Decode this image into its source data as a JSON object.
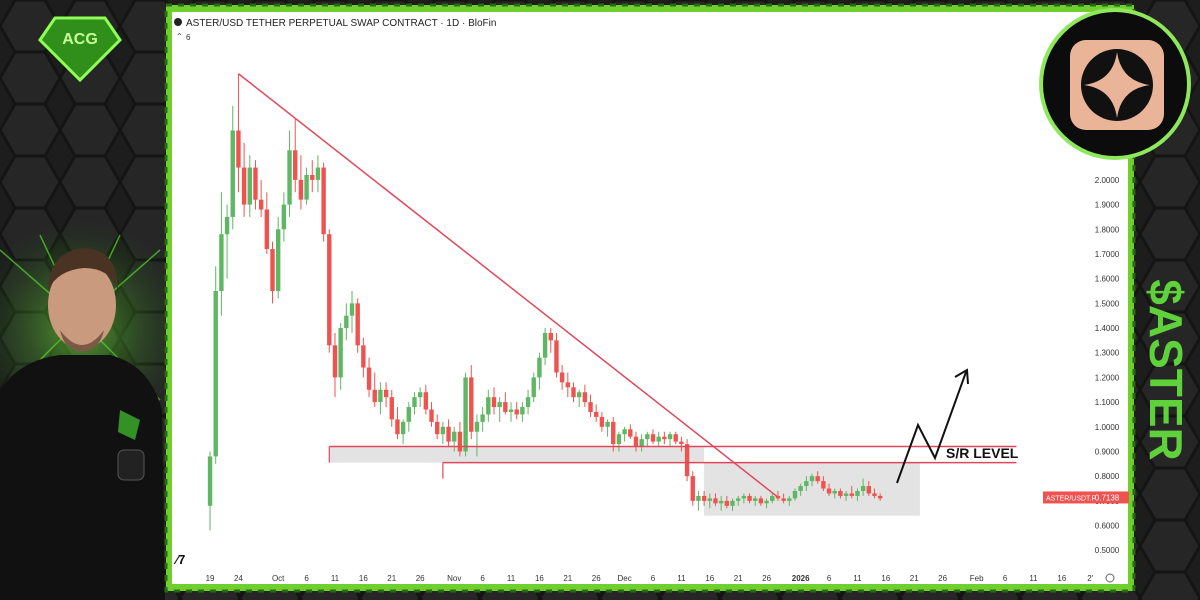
{
  "brand": "ACG",
  "ticker_label": "$ASTER",
  "chart_data": {
    "type": "candlestick",
    "title": "ASTER/USD TETHER PERPETUAL SWAP CONTRACT · 1D · BloFin",
    "indicator_count": "6",
    "up_color": "#5fb764",
    "down_color": "#ef5350",
    "grid": false,
    "xlim": [
      -3,
      159
    ],
    "ylim": [
      0.42,
      2.68
    ],
    "xticks": [
      {
        "value": 0,
        "label": "19"
      },
      {
        "value": 5,
        "label": "24"
      },
      {
        "value": 12,
        "label": "Oct"
      },
      {
        "value": 17,
        "label": "6"
      },
      {
        "value": 22,
        "label": "11"
      },
      {
        "value": 27,
        "label": "16"
      },
      {
        "value": 32,
        "label": "21"
      },
      {
        "value": 37,
        "label": "26"
      },
      {
        "value": 43,
        "label": "Nov"
      },
      {
        "value": 48,
        "label": "6"
      },
      {
        "value": 53,
        "label": "11"
      },
      {
        "value": 58,
        "label": "16"
      },
      {
        "value": 63,
        "label": "21"
      },
      {
        "value": 68,
        "label": "26"
      },
      {
        "value": 73,
        "label": "Dec"
      },
      {
        "value": 78,
        "label": "6"
      },
      {
        "value": 83,
        "label": "11"
      },
      {
        "value": 88,
        "label": "16"
      },
      {
        "value": 93,
        "label": "21"
      },
      {
        "value": 98,
        "label": "26"
      },
      {
        "value": 104,
        "label": "2026"
      },
      {
        "value": 109,
        "label": "6"
      },
      {
        "value": 114,
        "label": "11"
      },
      {
        "value": 119,
        "label": "16"
      },
      {
        "value": 124,
        "label": "21"
      },
      {
        "value": 129,
        "label": "26"
      },
      {
        "value": 135,
        "label": "Feb"
      },
      {
        "value": 140,
        "label": "6"
      },
      {
        "value": 145,
        "label": "11"
      },
      {
        "value": 150,
        "label": "16"
      },
      {
        "value": 155,
        "label": "2'"
      }
    ],
    "yticks": [
      {
        "value": 2.0,
        "label": "2.0000"
      },
      {
        "value": 1.9,
        "label": "1.9000"
      },
      {
        "value": 1.8,
        "label": "1.8000"
      },
      {
        "value": 1.7,
        "label": "1.7000"
      },
      {
        "value": 1.6,
        "label": "1.6000"
      },
      {
        "value": 1.5,
        "label": "1.5000"
      },
      {
        "value": 1.4,
        "label": "1.4000"
      },
      {
        "value": 1.3,
        "label": "1.3000"
      },
      {
        "value": 1.2,
        "label": "1.2000"
      },
      {
        "value": 1.1,
        "label": "1.1000"
      },
      {
        "value": 1.0,
        "label": "1.0000"
      },
      {
        "value": 0.9,
        "label": "0.9000"
      },
      {
        "value": 0.8,
        "label": "0.8000"
      },
      {
        "value": 0.7,
        "label": "0.7000"
      },
      {
        "value": 0.6,
        "label": "0.6000"
      },
      {
        "value": 0.5,
        "label": "0.5000"
      }
    ],
    "ohlc": [
      [
        0.68,
        0.9,
        0.58,
        0.88
      ],
      [
        0.88,
        1.65,
        0.85,
        1.55
      ],
      [
        1.55,
        1.95,
        1.45,
        1.78
      ],
      [
        1.78,
        1.9,
        1.6,
        1.85
      ],
      [
        1.85,
        2.3,
        1.8,
        2.2
      ],
      [
        2.2,
        2.43,
        1.95,
        2.05
      ],
      [
        2.05,
        2.15,
        1.85,
        1.9
      ],
      [
        1.9,
        2.1,
        1.85,
        2.05
      ],
      [
        2.05,
        2.08,
        1.88,
        1.92
      ],
      [
        1.92,
        2.0,
        1.85,
        1.88
      ],
      [
        1.88,
        1.95,
        1.7,
        1.72
      ],
      [
        1.72,
        1.75,
        1.5,
        1.55
      ],
      [
        1.55,
        1.85,
        1.52,
        1.8
      ],
      [
        1.8,
        1.95,
        1.75,
        1.9
      ],
      [
        1.9,
        2.2,
        1.85,
        2.12
      ],
      [
        2.12,
        2.25,
        1.95,
        2.0
      ],
      [
        2.0,
        2.1,
        1.88,
        1.92
      ],
      [
        1.92,
        2.05,
        1.9,
        2.02
      ],
      [
        2.02,
        2.08,
        1.95,
        2.0
      ],
      [
        2.0,
        2.1,
        1.95,
        2.05
      ],
      [
        2.05,
        2.07,
        1.75,
        1.78
      ],
      [
        1.78,
        1.8,
        1.3,
        1.33
      ],
      [
        1.33,
        1.38,
        1.12,
        1.2
      ],
      [
        1.2,
        1.42,
        1.15,
        1.4
      ],
      [
        1.4,
        1.5,
        1.35,
        1.45
      ],
      [
        1.45,
        1.55,
        1.38,
        1.5
      ],
      [
        1.5,
        1.52,
        1.3,
        1.33
      ],
      [
        1.33,
        1.36,
        1.2,
        1.24
      ],
      [
        1.24,
        1.28,
        1.12,
        1.15
      ],
      [
        1.15,
        1.22,
        1.08,
        1.1
      ],
      [
        1.1,
        1.18,
        1.05,
        1.15
      ],
      [
        1.15,
        1.18,
        1.08,
        1.12
      ],
      [
        1.12,
        1.15,
        1.0,
        1.03
      ],
      [
        1.03,
        1.08,
        0.95,
        0.97
      ],
      [
        0.97,
        1.03,
        0.93,
        1.02
      ],
      [
        1.02,
        1.1,
        0.98,
        1.08
      ],
      [
        1.08,
        1.14,
        1.05,
        1.12
      ],
      [
        1.12,
        1.16,
        1.08,
        1.14
      ],
      [
        1.14,
        1.17,
        1.05,
        1.07
      ],
      [
        1.07,
        1.1,
        1.0,
        1.02
      ],
      [
        1.02,
        1.05,
        0.95,
        0.97
      ],
      [
        0.97,
        1.02,
        0.93,
        1.0
      ],
      [
        1.0,
        1.03,
        0.92,
        0.94
      ],
      [
        0.94,
        1.0,
        0.9,
        0.98
      ],
      [
        0.98,
        1.02,
        0.88,
        0.9
      ],
      [
        0.9,
        1.22,
        0.88,
        1.2
      ],
      [
        1.2,
        1.25,
        0.95,
        0.98
      ],
      [
        0.98,
        1.05,
        0.88,
        1.02
      ],
      [
        1.02,
        1.08,
        0.98,
        1.05
      ],
      [
        1.05,
        1.15,
        1.02,
        1.12
      ],
      [
        1.12,
        1.16,
        1.05,
        1.08
      ],
      [
        1.08,
        1.12,
        1.02,
        1.1
      ],
      [
        1.1,
        1.14,
        1.05,
        1.06
      ],
      [
        1.06,
        1.1,
        1.02,
        1.07
      ],
      [
        1.07,
        1.1,
        1.03,
        1.05
      ],
      [
        1.05,
        1.1,
        1.02,
        1.08
      ],
      [
        1.08,
        1.15,
        1.05,
        1.12
      ],
      [
        1.12,
        1.22,
        1.1,
        1.2
      ],
      [
        1.2,
        1.3,
        1.15,
        1.28
      ],
      [
        1.28,
        1.4,
        1.25,
        1.38
      ],
      [
        1.38,
        1.4,
        1.3,
        1.35
      ],
      [
        1.35,
        1.38,
        1.2,
        1.22
      ],
      [
        1.22,
        1.25,
        1.15,
        1.18
      ],
      [
        1.18,
        1.22,
        1.12,
        1.16
      ],
      [
        1.16,
        1.18,
        1.1,
        1.12
      ],
      [
        1.12,
        1.15,
        1.08,
        1.14
      ],
      [
        1.14,
        1.17,
        1.08,
        1.1
      ],
      [
        1.1,
        1.13,
        1.04,
        1.06
      ],
      [
        1.06,
        1.09,
        1.02,
        1.04
      ],
      [
        1.04,
        1.06,
        0.98,
        1.0
      ],
      [
        1.0,
        1.03,
        0.96,
        1.02
      ],
      [
        1.02,
        1.04,
        0.9,
        0.93
      ],
      [
        0.93,
        0.98,
        0.9,
        0.97
      ],
      [
        0.97,
        1.0,
        0.94,
        0.99
      ],
      [
        0.99,
        1.01,
        0.95,
        0.96
      ],
      [
        0.96,
        0.98,
        0.9,
        0.92
      ],
      [
        0.92,
        0.97,
        0.9,
        0.95
      ],
      [
        0.95,
        0.98,
        0.92,
        0.97
      ],
      [
        0.97,
        0.99,
        0.93,
        0.94
      ],
      [
        0.94,
        0.98,
        0.92,
        0.96
      ],
      [
        0.96,
        0.98,
        0.93,
        0.95
      ],
      [
        0.95,
        0.98,
        0.92,
        0.97
      ],
      [
        0.97,
        0.98,
        0.93,
        0.94
      ],
      [
        0.94,
        0.96,
        0.9,
        0.93
      ],
      [
        0.93,
        0.95,
        0.78,
        0.8
      ],
      [
        0.8,
        0.82,
        0.68,
        0.7
      ],
      [
        0.7,
        0.74,
        0.66,
        0.72
      ],
      [
        0.72,
        0.74,
        0.68,
        0.7
      ],
      [
        0.7,
        0.73,
        0.67,
        0.71
      ],
      [
        0.71,
        0.73,
        0.68,
        0.69
      ],
      [
        0.69,
        0.72,
        0.66,
        0.7
      ],
      [
        0.7,
        0.72,
        0.67,
        0.68
      ],
      [
        0.68,
        0.71,
        0.66,
        0.7
      ],
      [
        0.7,
        0.72,
        0.68,
        0.71
      ],
      [
        0.71,
        0.73,
        0.69,
        0.72
      ],
      [
        0.72,
        0.73,
        0.69,
        0.7
      ],
      [
        0.7,
        0.72,
        0.68,
        0.71
      ],
      [
        0.71,
        0.72,
        0.68,
        0.69
      ],
      [
        0.69,
        0.71,
        0.67,
        0.7
      ],
      [
        0.7,
        0.73,
        0.69,
        0.72
      ],
      [
        0.72,
        0.74,
        0.7,
        0.71
      ],
      [
        0.71,
        0.73,
        0.69,
        0.7
      ],
      [
        0.7,
        0.72,
        0.68,
        0.71
      ],
      [
        0.71,
        0.75,
        0.7,
        0.74
      ],
      [
        0.74,
        0.77,
        0.72,
        0.76
      ],
      [
        0.76,
        0.8,
        0.74,
        0.78
      ],
      [
        0.78,
        0.81,
        0.76,
        0.8
      ],
      [
        0.8,
        0.82,
        0.77,
        0.78
      ],
      [
        0.78,
        0.8,
        0.74,
        0.75
      ],
      [
        0.75,
        0.77,
        0.72,
        0.73
      ],
      [
        0.73,
        0.75,
        0.71,
        0.74
      ],
      [
        0.74,
        0.75,
        0.71,
        0.72
      ],
      [
        0.72,
        0.74,
        0.7,
        0.73
      ],
      [
        0.73,
        0.76,
        0.71,
        0.72
      ],
      [
        0.72,
        0.75,
        0.7,
        0.74
      ],
      [
        0.74,
        0.79,
        0.72,
        0.76
      ],
      [
        0.76,
        0.78,
        0.72,
        0.73
      ],
      [
        0.73,
        0.75,
        0.71,
        0.72
      ],
      [
        0.72,
        0.73,
        0.7,
        0.71
      ]
    ],
    "trendline": {
      "x": [
        5,
        100
      ],
      "y": [
        2.43,
        0.715
      ],
      "color": "#e0485a"
    },
    "levels": [
      {
        "value": 0.92,
        "x": [
          21,
          142
        ]
      },
      {
        "value": 0.855,
        "x": [
          41,
          142
        ]
      }
    ],
    "zones": [
      {
        "x": [
          21,
          87
        ],
        "y": [
          0.855,
          0.92
        ]
      },
      {
        "x": [
          87,
          125
        ],
        "y": [
          0.64,
          0.855
        ]
      }
    ],
    "annotation": "S/R LEVEL",
    "last_price": {
      "symbol": "ASTER/USDT.P",
      "value": 0.7138
    }
  }
}
